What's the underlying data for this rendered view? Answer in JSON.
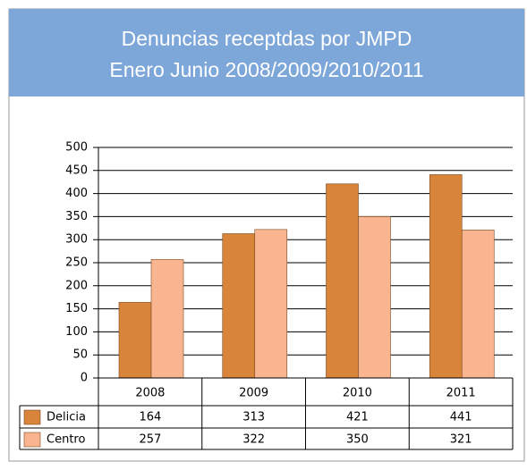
{
  "chart_data": {
    "type": "bar",
    "title": "Denuncias receptdas por JMPD",
    "subtitle": "Enero Junio 2008/2009/2010/2011",
    "categories": [
      "2008",
      "2009",
      "2010",
      "2011"
    ],
    "series": [
      {
        "name": "Delicia",
        "color": "#d9843b",
        "values": [
          164,
          313,
          421,
          441
        ]
      },
      {
        "name": "Centro",
        "color": "#f9b58f",
        "values": [
          257,
          322,
          350,
          321
        ]
      }
    ],
    "ylim": [
      0,
      500
    ],
    "yticks": [
      0,
      50,
      100,
      150,
      200,
      250,
      300,
      350,
      400,
      450,
      500
    ],
    "grid": true
  }
}
